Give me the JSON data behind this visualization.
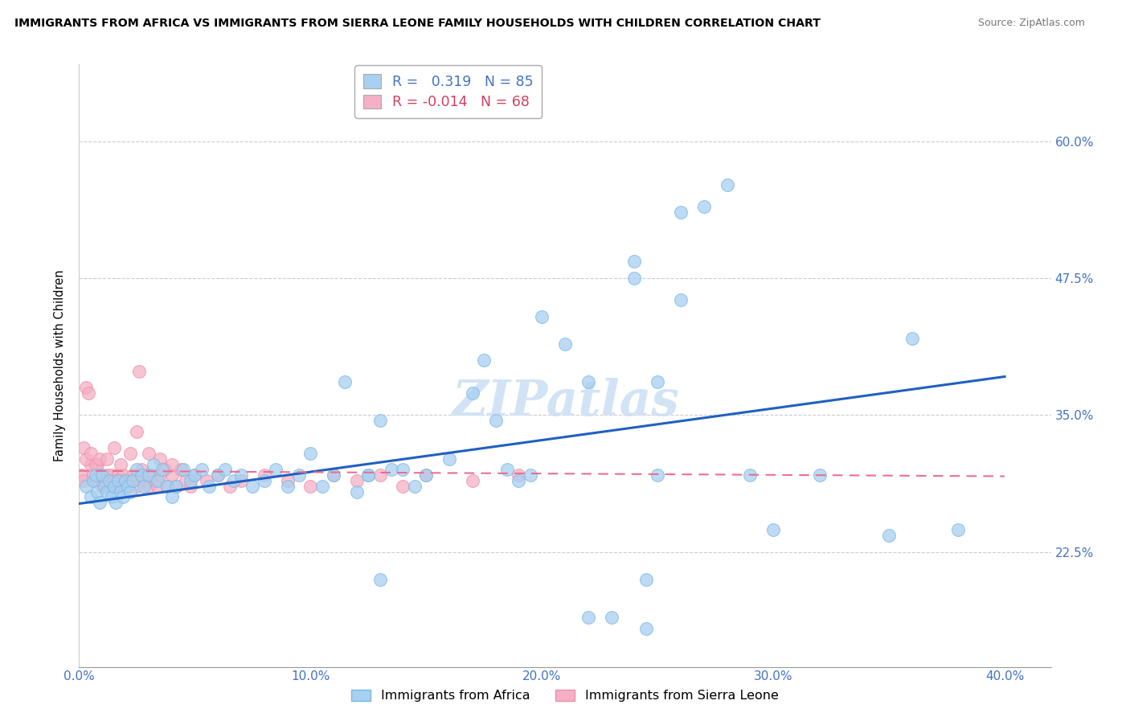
{
  "title": "IMMIGRANTS FROM AFRICA VS IMMIGRANTS FROM SIERRA LEONE FAMILY HOUSEHOLDS WITH CHILDREN CORRELATION CHART",
  "source": "Source: ZipAtlas.com",
  "ylabel": "Family Households with Children",
  "ytick_vals": [
    0.225,
    0.35,
    0.475,
    0.6
  ],
  "ytick_labels": [
    "22.5%",
    "35.0%",
    "47.5%",
    "60.0%"
  ],
  "xtick_vals": [
    0.0,
    0.1,
    0.2,
    0.3,
    0.4
  ],
  "xtick_labels": [
    "0.0%",
    "10.0%",
    "20.0%",
    "30.0%",
    "40.0%"
  ],
  "xlim": [
    0.0,
    0.42
  ],
  "ylim": [
    0.12,
    0.67
  ],
  "africa_R": 0.319,
  "africa_N": 85,
  "sierra_leone_R": -0.014,
  "sierra_leone_N": 68,
  "africa_color": "#a8d0f0",
  "africa_edge_color": "#7ab8e8",
  "sierra_leone_color": "#f5b0c5",
  "sierra_leone_edge_color": "#ee90aa",
  "africa_line_color": "#2060c0",
  "sierra_leone_line_color": "#e87090",
  "watermark": "ZIPatlas",
  "watermark_color": "#cde0f5",
  "africa_x": [
    0.003,
    0.005,
    0.006,
    0.007,
    0.008,
    0.009,
    0.01,
    0.011,
    0.012,
    0.013,
    0.014,
    0.015,
    0.016,
    0.017,
    0.018,
    0.019,
    0.02,
    0.021,
    0.022,
    0.023,
    0.025,
    0.027,
    0.028,
    0.03,
    0.032,
    0.034,
    0.036,
    0.038,
    0.04,
    0.042,
    0.045,
    0.048,
    0.05,
    0.053,
    0.056,
    0.06,
    0.063,
    0.067,
    0.07,
    0.075,
    0.08,
    0.085,
    0.09,
    0.095,
    0.1,
    0.105,
    0.11,
    0.115,
    0.12,
    0.125,
    0.13,
    0.135,
    0.14,
    0.145,
    0.15,
    0.16,
    0.17,
    0.175,
    0.18,
    0.185,
    0.19,
    0.195,
    0.2,
    0.21,
    0.22,
    0.24,
    0.25,
    0.26,
    0.27,
    0.28,
    0.29,
    0.3,
    0.32,
    0.35,
    0.36,
    0.38,
    0.24,
    0.25,
    0.26,
    0.13,
    0.22,
    0.23,
    0.245,
    0.245,
    0.125
  ],
  "africa_y": [
    0.285,
    0.275,
    0.29,
    0.295,
    0.28,
    0.27,
    0.295,
    0.285,
    0.28,
    0.29,
    0.275,
    0.285,
    0.27,
    0.29,
    0.28,
    0.275,
    0.29,
    0.285,
    0.28,
    0.29,
    0.3,
    0.295,
    0.285,
    0.295,
    0.305,
    0.29,
    0.3,
    0.285,
    0.275,
    0.285,
    0.3,
    0.29,
    0.295,
    0.3,
    0.285,
    0.295,
    0.3,
    0.29,
    0.295,
    0.285,
    0.29,
    0.3,
    0.285,
    0.295,
    0.315,
    0.285,
    0.295,
    0.38,
    0.28,
    0.295,
    0.345,
    0.3,
    0.3,
    0.285,
    0.295,
    0.31,
    0.37,
    0.4,
    0.345,
    0.3,
    0.29,
    0.295,
    0.44,
    0.415,
    0.38,
    0.475,
    0.38,
    0.535,
    0.54,
    0.56,
    0.295,
    0.245,
    0.295,
    0.24,
    0.42,
    0.245,
    0.49,
    0.295,
    0.455,
    0.2,
    0.165,
    0.165,
    0.2,
    0.155,
    0.295
  ],
  "sierra_leone_x": [
    0.001,
    0.002,
    0.003,
    0.004,
    0.005,
    0.006,
    0.007,
    0.008,
    0.009,
    0.01,
    0.011,
    0.012,
    0.013,
    0.014,
    0.015,
    0.016,
    0.017,
    0.018,
    0.019,
    0.02,
    0.021,
    0.022,
    0.023,
    0.025,
    0.026,
    0.027,
    0.028,
    0.029,
    0.03,
    0.031,
    0.033,
    0.034,
    0.035,
    0.037,
    0.038,
    0.04,
    0.042,
    0.044,
    0.046,
    0.048,
    0.05,
    0.055,
    0.06,
    0.065,
    0.07,
    0.08,
    0.09,
    0.1,
    0.11,
    0.12,
    0.13,
    0.14,
    0.15,
    0.17,
    0.19,
    0.002,
    0.003,
    0.005,
    0.007,
    0.009,
    0.012,
    0.015,
    0.018,
    0.022,
    0.025,
    0.03,
    0.035,
    0.04
  ],
  "sierra_leone_y": [
    0.295,
    0.29,
    0.375,
    0.37,
    0.305,
    0.295,
    0.29,
    0.305,
    0.295,
    0.285,
    0.29,
    0.295,
    0.285,
    0.295,
    0.29,
    0.285,
    0.295,
    0.285,
    0.295,
    0.29,
    0.285,
    0.29,
    0.295,
    0.285,
    0.39,
    0.3,
    0.29,
    0.295,
    0.285,
    0.295,
    0.29,
    0.285,
    0.295,
    0.3,
    0.285,
    0.295,
    0.285,
    0.3,
    0.29,
    0.285,
    0.295,
    0.29,
    0.295,
    0.285,
    0.29,
    0.295,
    0.29,
    0.285,
    0.295,
    0.29,
    0.295,
    0.285,
    0.295,
    0.29,
    0.295,
    0.32,
    0.31,
    0.315,
    0.305,
    0.31,
    0.31,
    0.32,
    0.305,
    0.315,
    0.335,
    0.315,
    0.31,
    0.305
  ],
  "africa_line_x0": 0.0,
  "africa_line_y0": 0.269,
  "africa_line_x1": 0.4,
  "africa_line_y1": 0.385,
  "sierra_line_x0": 0.0,
  "sierra_line_y0": 0.299,
  "sierra_line_x1": 0.4,
  "sierra_line_y1": 0.294
}
